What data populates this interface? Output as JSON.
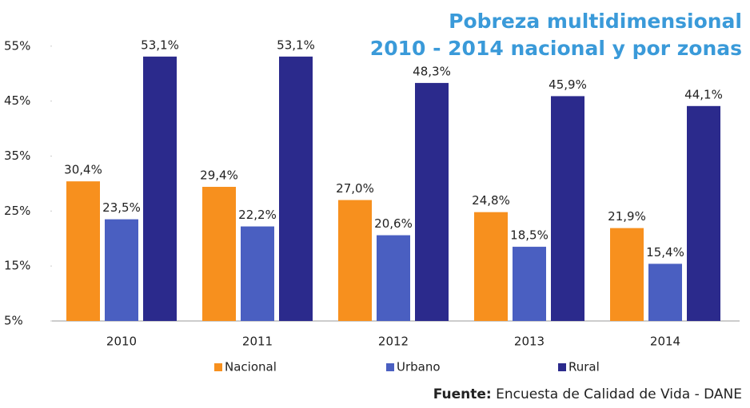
{
  "chart_data": {
    "type": "bar",
    "title": [
      "Pobreza multidimensional",
      "2010 - 2014 nacional y por zonas"
    ],
    "source_label": "Fuente:",
    "source_text": "Encuesta de Calidad de Vida - DANE",
    "categories": [
      "2010",
      "2011",
      "2012",
      "2013",
      "2014"
    ],
    "series": [
      {
        "name": "Nacional",
        "color": "#f7901e",
        "values": [
          30.4,
          29.4,
          27.0,
          24.8,
          21.9
        ],
        "value_labels": [
          "30,4%",
          "29,4%",
          "27,0%",
          "24,8%",
          "21,9%"
        ]
      },
      {
        "name": "Urbano",
        "color": "#4a5fc1",
        "values": [
          23.5,
          22.2,
          20.6,
          18.5,
          15.4
        ],
        "value_labels": [
          "23,5%",
          "22,2%",
          "20,6%",
          "18,5%",
          "15,4%"
        ]
      },
      {
        "name": "Rural",
        "color": "#2b2a8c",
        "values": [
          53.1,
          53.1,
          48.3,
          45.9,
          44.1
        ],
        "value_labels": [
          "53,1%",
          "53,1%",
          "48,3%",
          "45,9%",
          "44,1%"
        ]
      }
    ],
    "ylim": [
      5,
      57
    ],
    "yticks": [
      {
        "value": 5,
        "label": "5%"
      },
      {
        "value": 15,
        "label": "15%"
      },
      {
        "value": 25,
        "label": "25%"
      },
      {
        "value": 35,
        "label": "35%"
      },
      {
        "value": 45,
        "label": "45%"
      },
      {
        "value": 55,
        "label": "55%"
      }
    ],
    "grid": false,
    "legend": "bottom"
  }
}
